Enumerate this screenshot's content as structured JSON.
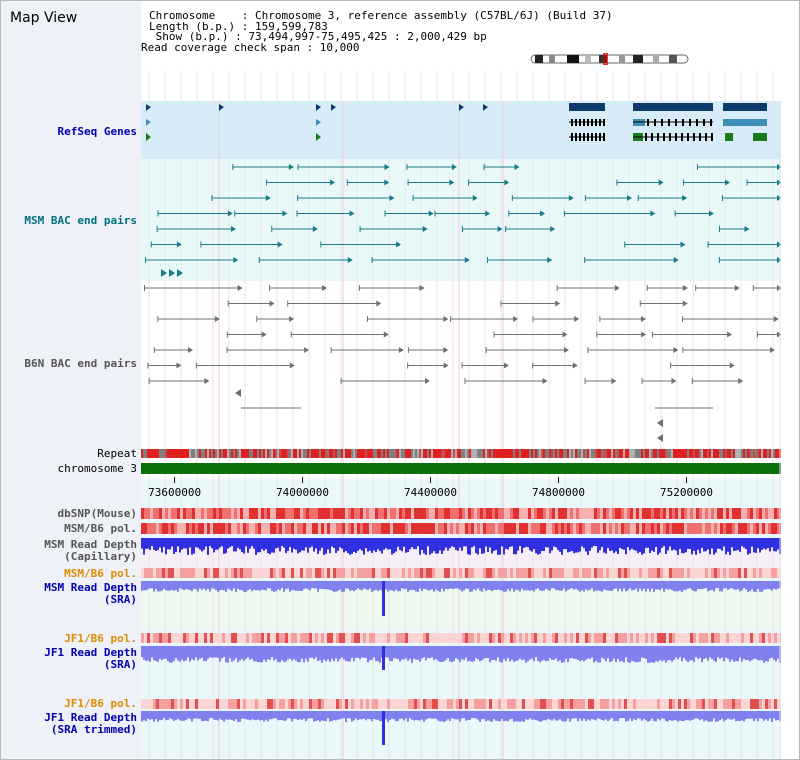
{
  "page": {
    "title": "Map View"
  },
  "info": {
    "chromosome_line": "Chromosome    : Chromosome 3, reference assembly (C57BL/6J) (Build 37)",
    "length_line": "Length (b.p.) : 159,599,783",
    "show_line": " Show (b.p.) : 73,494,997-75,495,425 : 2,000,429 bp",
    "coverage_line": "Read coverage check span : 10,000"
  },
  "tracks": {
    "refseq": "RefSeq Genes",
    "msm_bac": "MSM BAC end pairs",
    "b6n_bac": "B6N BAC end pairs",
    "repeat": "Repeat",
    "chromosome": "chromosome 3",
    "dbsnp": "dbSNP(Mouse)",
    "msm_b6_pol_1": "MSM/B6 pol.",
    "msm_depth_cap": "MSM Read Depth\n(Capillary)",
    "msm_b6_pol_2": "MSM/B6 pol.",
    "msm_depth_sra": "MSM Read Depth\n(SRA)",
    "jf1_b6_pol_1": "JF1/B6 pol.",
    "jf1_depth_sra": "JF1 Read Depth\n(SRA)",
    "jf1_b6_pol_2": "JF1/B6 pol.",
    "jf1_depth_trim": "JF1 Read Depth\n(SRA trimmed)"
  },
  "axis": {
    "ticks": [
      "73600000",
      "74000000",
      "74400000",
      "74800000",
      "75200000"
    ],
    "range_start": 73494997,
    "range_end": 75495425
  },
  "colors": {
    "refseq_bg": "#d6ecf9",
    "msm_bg": "#e9f9f9",
    "refseq_dark": "#0d3b6e",
    "refseq_mid": "#3d8fb8",
    "refseq_green": "#1c7a1c",
    "msm_pair": "#1a7a8a",
    "b6n_pair": "#6f6f6f",
    "chromosome_bar": "#0b700b",
    "depth_blue": "#3030e0",
    "depth_light": "#8080ee",
    "label_blue": "#0000b0",
    "label_orange": "#e08a00",
    "label_teal": "#007080"
  }
}
